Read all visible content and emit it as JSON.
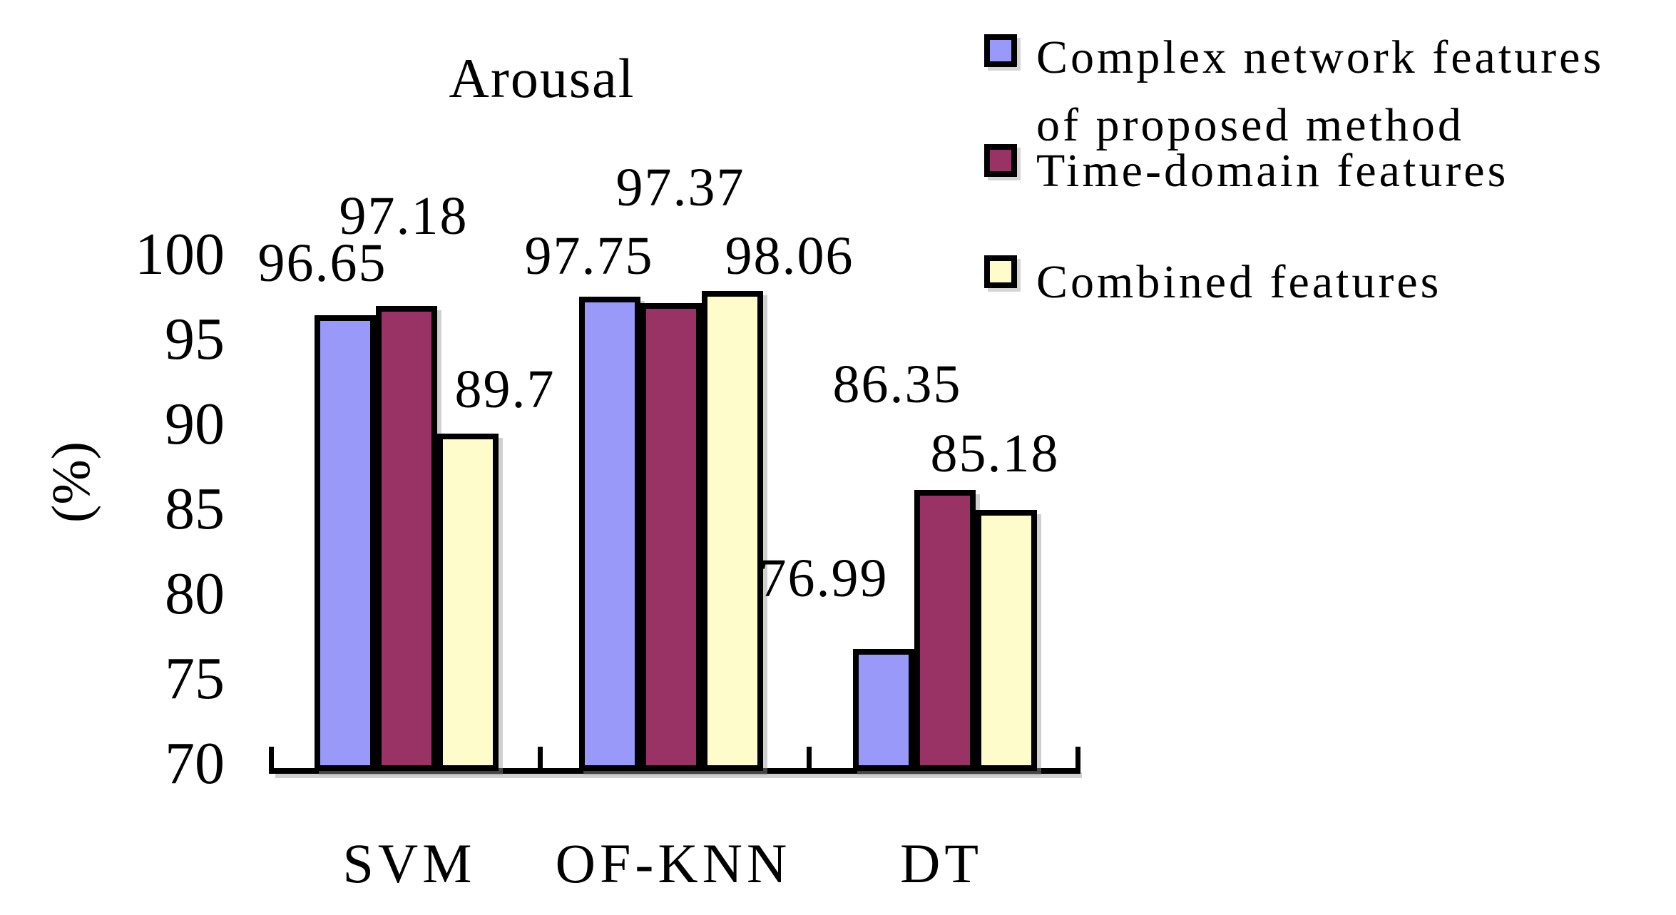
{
  "title": "Arousal",
  "y_unit": "(%)",
  "chart_data": {
    "type": "bar",
    "title": "Arousal",
    "ylabel": "(%)",
    "xlabel": "",
    "ylim": [
      70,
      100
    ],
    "yticks": [
      100,
      95,
      90,
      85,
      80,
      75,
      70
    ],
    "grid": false,
    "legend_position": "top-right",
    "categories": [
      "SVM",
      "OF-KNN",
      "DT"
    ],
    "series": [
      {
        "name": "Complex network features of proposed method",
        "legend_lines": [
          "Complex network features",
          "of proposed method"
        ],
        "color": "#9999FA",
        "values": [
          96.65,
          97.75,
          76.99
        ],
        "value_labels": [
          "96.65",
          "97.75",
          "76.99"
        ]
      },
      {
        "name": "Time-domain features",
        "legend_lines": [
          "Time-domain features"
        ],
        "color": "#993366",
        "values": [
          97.18,
          97.37,
          86.35
        ],
        "value_labels": [
          "97.18",
          "97.37",
          "86.35"
        ]
      },
      {
        "name": "Combined features",
        "legend_lines": [
          "Combined features"
        ],
        "color": "#FFFCCC",
        "values": [
          89.7,
          98.06,
          85.18
        ],
        "value_labels": [
          "89.7",
          "98.06",
          "85.18"
        ]
      }
    ]
  }
}
